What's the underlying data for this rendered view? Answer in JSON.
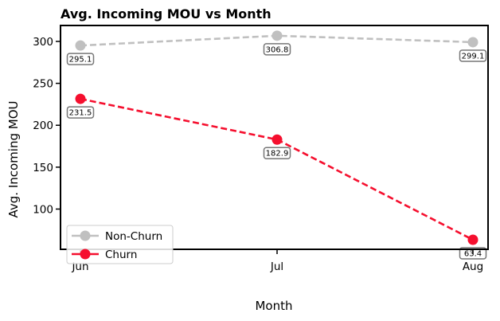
{
  "chart_data": {
    "type": "line",
    "title": "Avg. Incoming MOU vs Month",
    "xlabel": "Month",
    "ylabel": "Avg. Incoming MOU",
    "categories": [
      "Jun",
      "Jul",
      "Aug"
    ],
    "ylim": [
      52,
      319
    ],
    "yticks": [
      100,
      150,
      200,
      250,
      300
    ],
    "grid": false,
    "legend_position": "bottom-left",
    "series": [
      {
        "name": "Non-Churn",
        "values": [
          295.1,
          306.8,
          299.1
        ],
        "labels": [
          "295.1",
          "306.8",
          "299.1"
        ],
        "color": "#c0c0c0",
        "line_style": "dashed",
        "marker": "circle"
      },
      {
        "name": "Churn",
        "values": [
          231.5,
          182.9,
          63.4
        ],
        "labels": [
          "231.5",
          "182.9",
          "63.4"
        ],
        "color": "#f50f2e",
        "line_style": "dashed",
        "marker": "circle"
      }
    ]
  }
}
